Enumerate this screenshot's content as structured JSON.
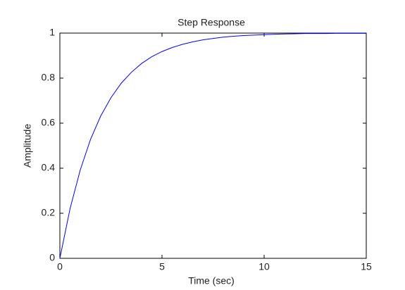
{
  "chart_data": {
    "type": "line",
    "title": "Step Response",
    "x_label": "Time (sec)",
    "y_label": "Amplitude",
    "x": [
      0,
      0.5,
      1,
      1.5,
      2,
      2.5,
      3,
      3.5,
      4,
      4.5,
      5,
      5.5,
      6,
      6.5,
      7,
      7.5,
      8,
      8.5,
      9,
      9.5,
      10,
      10.5,
      11,
      11.5,
      12,
      12.5,
      13,
      13.5,
      14,
      14.5,
      15
    ],
    "series": [
      {
        "color": "#0000ff",
        "values": [
          0,
          0.221,
          0.393,
          0.528,
          0.632,
          0.713,
          0.777,
          0.826,
          0.865,
          0.895,
          0.918,
          0.936,
          0.95,
          0.961,
          0.97,
          0.976,
          0.982,
          0.986,
          0.989,
          0.991,
          0.993,
          0.995,
          0.996,
          0.997,
          0.998,
          0.998,
          0.998,
          0.999,
          0.999,
          0.999,
          0.999
        ]
      }
    ],
    "steady_state": 1,
    "xlim": [
      0,
      15
    ],
    "xticks": [
      0,
      5,
      10,
      15
    ],
    "ylim": [
      0,
      1
    ],
    "yticks": [
      0,
      0.2,
      0.4,
      0.6,
      0.8,
      1
    ]
  }
}
